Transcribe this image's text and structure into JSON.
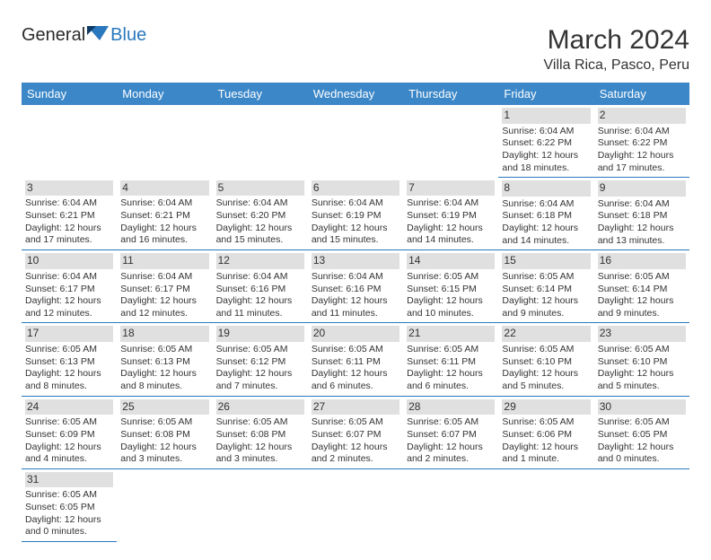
{
  "logo": {
    "part1": "General",
    "part2": "Blue"
  },
  "title": "March 2024",
  "location": "Villa Rica, Pasco, Peru",
  "calendar": {
    "header_bg": "#3b87c8",
    "header_fg": "#ffffff",
    "row_border_color": "#2a78bd",
    "daynum_bg": "#e0e0e0",
    "text_color": "#333333",
    "cell_fontsize": 10.5,
    "columns": [
      "Sunday",
      "Monday",
      "Tuesday",
      "Wednesday",
      "Thursday",
      "Friday",
      "Saturday"
    ],
    "weeks": [
      [
        null,
        null,
        null,
        null,
        null,
        {
          "n": "1",
          "sunrise": "6:04 AM",
          "sunset": "6:22 PM",
          "dl1": "12 hours",
          "dl2": "and 18 minutes."
        },
        {
          "n": "2",
          "sunrise": "6:04 AM",
          "sunset": "6:22 PM",
          "dl1": "12 hours",
          "dl2": "and 17 minutes."
        }
      ],
      [
        {
          "n": "3",
          "sunrise": "6:04 AM",
          "sunset": "6:21 PM",
          "dl1": "12 hours",
          "dl2": "and 17 minutes."
        },
        {
          "n": "4",
          "sunrise": "6:04 AM",
          "sunset": "6:21 PM",
          "dl1": "12 hours",
          "dl2": "and 16 minutes."
        },
        {
          "n": "5",
          "sunrise": "6:04 AM",
          "sunset": "6:20 PM",
          "dl1": "12 hours",
          "dl2": "and 15 minutes."
        },
        {
          "n": "6",
          "sunrise": "6:04 AM",
          "sunset": "6:19 PM",
          "dl1": "12 hours",
          "dl2": "and 15 minutes."
        },
        {
          "n": "7",
          "sunrise": "6:04 AM",
          "sunset": "6:19 PM",
          "dl1": "12 hours",
          "dl2": "and 14 minutes."
        },
        {
          "n": "8",
          "sunrise": "6:04 AM",
          "sunset": "6:18 PM",
          "dl1": "12 hours",
          "dl2": "and 14 minutes."
        },
        {
          "n": "9",
          "sunrise": "6:04 AM",
          "sunset": "6:18 PM",
          "dl1": "12 hours",
          "dl2": "and 13 minutes."
        }
      ],
      [
        {
          "n": "10",
          "sunrise": "6:04 AM",
          "sunset": "6:17 PM",
          "dl1": "12 hours",
          "dl2": "and 12 minutes."
        },
        {
          "n": "11",
          "sunrise": "6:04 AM",
          "sunset": "6:17 PM",
          "dl1": "12 hours",
          "dl2": "and 12 minutes."
        },
        {
          "n": "12",
          "sunrise": "6:04 AM",
          "sunset": "6:16 PM",
          "dl1": "12 hours",
          "dl2": "and 11 minutes."
        },
        {
          "n": "13",
          "sunrise": "6:04 AM",
          "sunset": "6:16 PM",
          "dl1": "12 hours",
          "dl2": "and 11 minutes."
        },
        {
          "n": "14",
          "sunrise": "6:05 AM",
          "sunset": "6:15 PM",
          "dl1": "12 hours",
          "dl2": "and 10 minutes."
        },
        {
          "n": "15",
          "sunrise": "6:05 AM",
          "sunset": "6:14 PM",
          "dl1": "12 hours",
          "dl2": "and 9 minutes."
        },
        {
          "n": "16",
          "sunrise": "6:05 AM",
          "sunset": "6:14 PM",
          "dl1": "12 hours",
          "dl2": "and 9 minutes."
        }
      ],
      [
        {
          "n": "17",
          "sunrise": "6:05 AM",
          "sunset": "6:13 PM",
          "dl1": "12 hours",
          "dl2": "and 8 minutes."
        },
        {
          "n": "18",
          "sunrise": "6:05 AM",
          "sunset": "6:13 PM",
          "dl1": "12 hours",
          "dl2": "and 8 minutes."
        },
        {
          "n": "19",
          "sunrise": "6:05 AM",
          "sunset": "6:12 PM",
          "dl1": "12 hours",
          "dl2": "and 7 minutes."
        },
        {
          "n": "20",
          "sunrise": "6:05 AM",
          "sunset": "6:11 PM",
          "dl1": "12 hours",
          "dl2": "and 6 minutes."
        },
        {
          "n": "21",
          "sunrise": "6:05 AM",
          "sunset": "6:11 PM",
          "dl1": "12 hours",
          "dl2": "and 6 minutes."
        },
        {
          "n": "22",
          "sunrise": "6:05 AM",
          "sunset": "6:10 PM",
          "dl1": "12 hours",
          "dl2": "and 5 minutes."
        },
        {
          "n": "23",
          "sunrise": "6:05 AM",
          "sunset": "6:10 PM",
          "dl1": "12 hours",
          "dl2": "and 5 minutes."
        }
      ],
      [
        {
          "n": "24",
          "sunrise": "6:05 AM",
          "sunset": "6:09 PM",
          "dl1": "12 hours",
          "dl2": "and 4 minutes."
        },
        {
          "n": "25",
          "sunrise": "6:05 AM",
          "sunset": "6:08 PM",
          "dl1": "12 hours",
          "dl2": "and 3 minutes."
        },
        {
          "n": "26",
          "sunrise": "6:05 AM",
          "sunset": "6:08 PM",
          "dl1": "12 hours",
          "dl2": "and 3 minutes."
        },
        {
          "n": "27",
          "sunrise": "6:05 AM",
          "sunset": "6:07 PM",
          "dl1": "12 hours",
          "dl2": "and 2 minutes."
        },
        {
          "n": "28",
          "sunrise": "6:05 AM",
          "sunset": "6:07 PM",
          "dl1": "12 hours",
          "dl2": "and 2 minutes."
        },
        {
          "n": "29",
          "sunrise": "6:05 AM",
          "sunset": "6:06 PM",
          "dl1": "12 hours",
          "dl2": "and 1 minute."
        },
        {
          "n": "30",
          "sunrise": "6:05 AM",
          "sunset": "6:05 PM",
          "dl1": "12 hours",
          "dl2": "and 0 minutes."
        }
      ],
      [
        {
          "n": "31",
          "sunrise": "6:05 AM",
          "sunset": "6:05 PM",
          "dl1": "12 hours",
          "dl2": "and 0 minutes."
        },
        null,
        null,
        null,
        null,
        null,
        null
      ]
    ],
    "labels": {
      "sunrise": "Sunrise:",
      "sunset": "Sunset:",
      "daylight": "Daylight:"
    }
  }
}
